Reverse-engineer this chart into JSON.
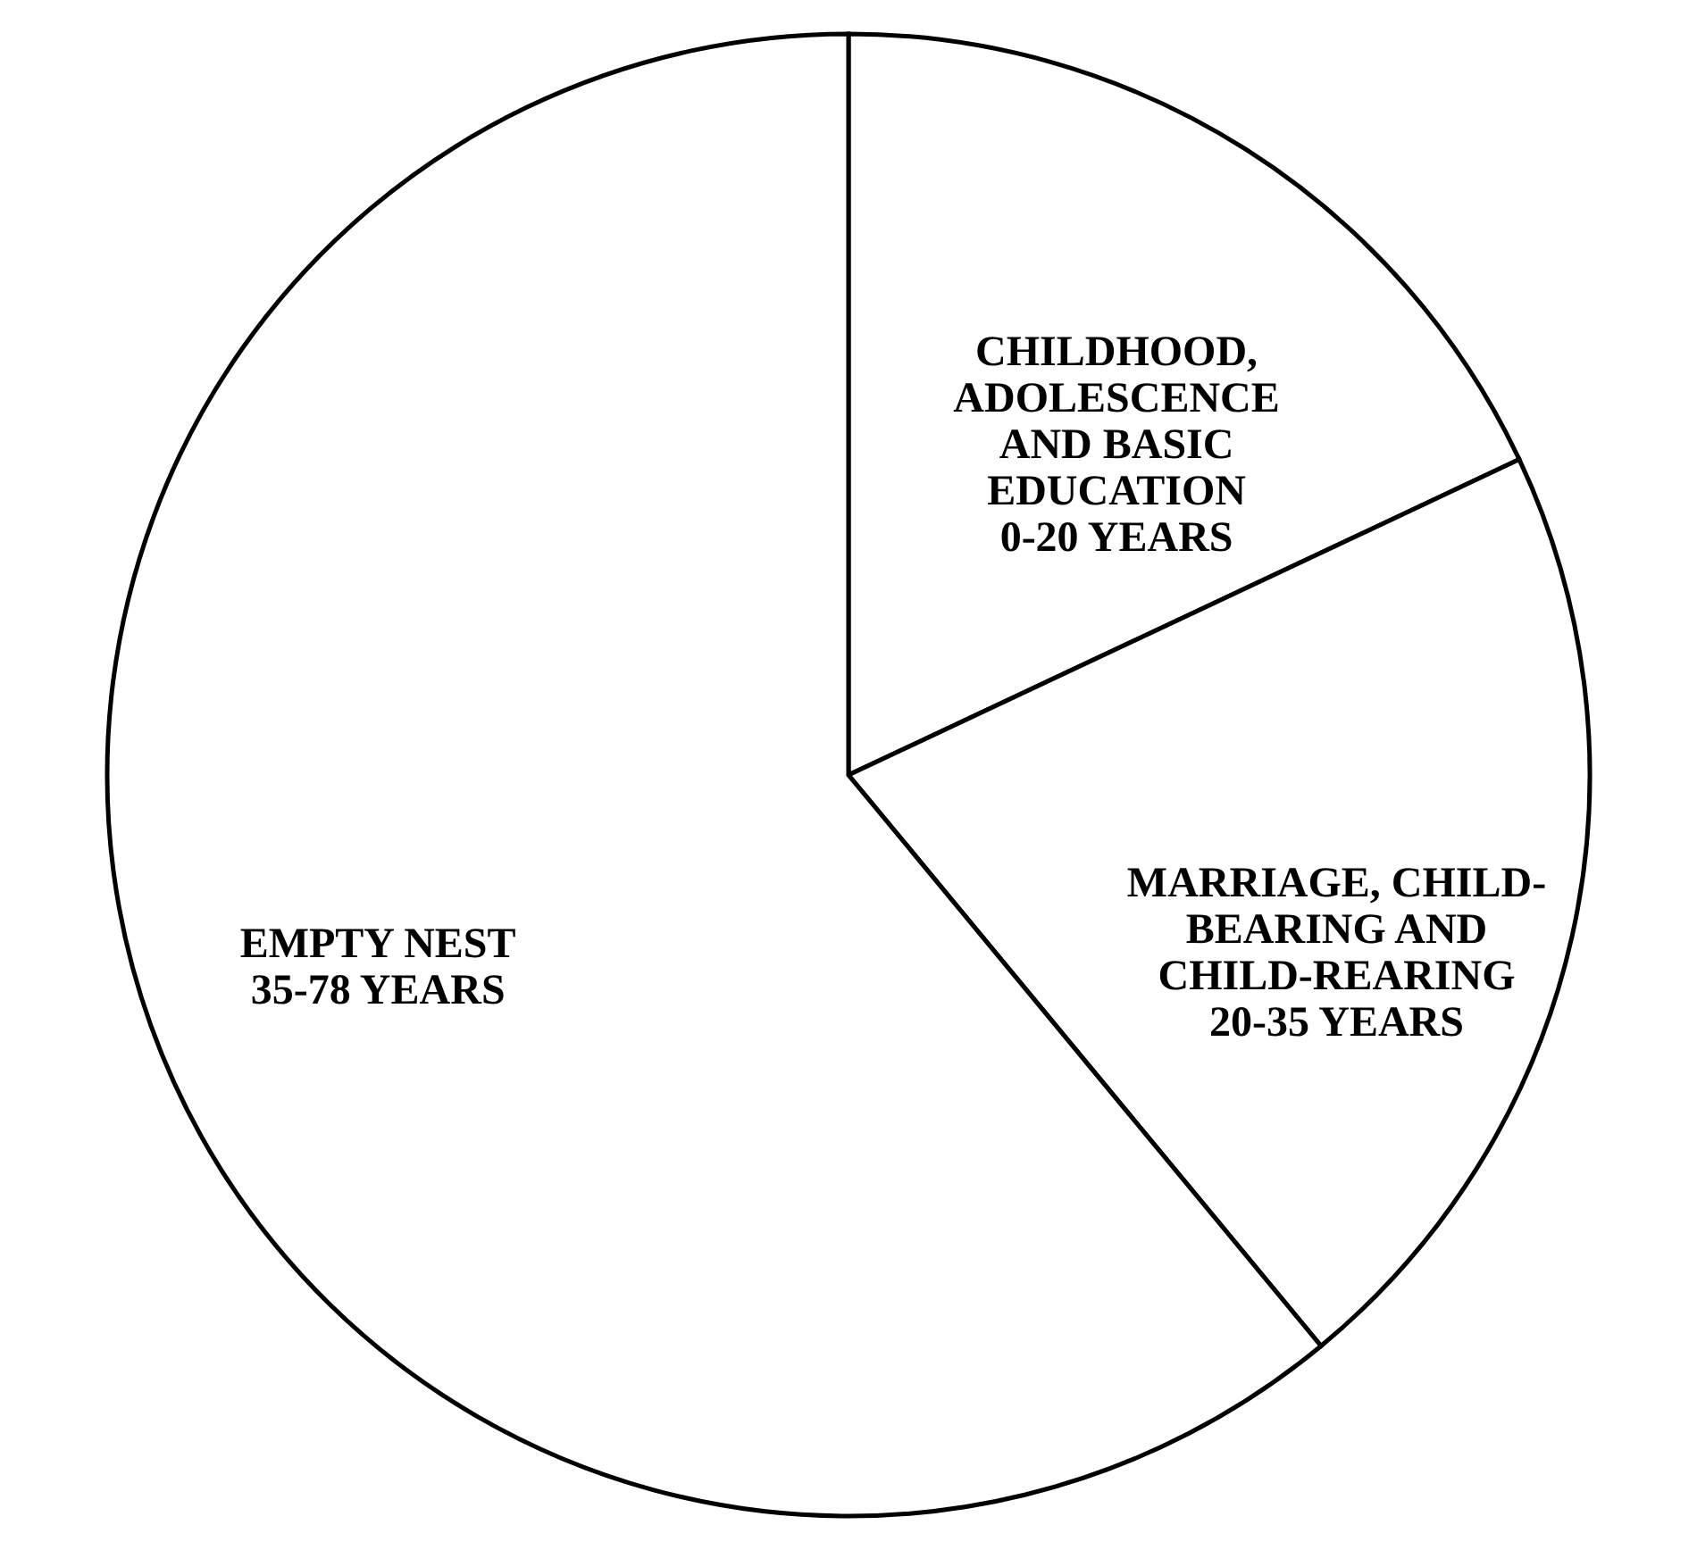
{
  "chart_data": {
    "type": "pie",
    "categories": [
      "CHILDHOOD,\nADOLESCENCE\nAND BASIC\nEDUCATION\n0-20 YEARS",
      "MARRIAGE, CHILD-\nBEARING AND\nCHILD-REARING\n20-35 YEARS",
      "EMPTY NEST\n35-78 YEARS"
    ],
    "values": [
      18,
      21,
      61
    ],
    "colors": [
      "#ffffff",
      "#ffffff",
      "#ffffff"
    ]
  }
}
